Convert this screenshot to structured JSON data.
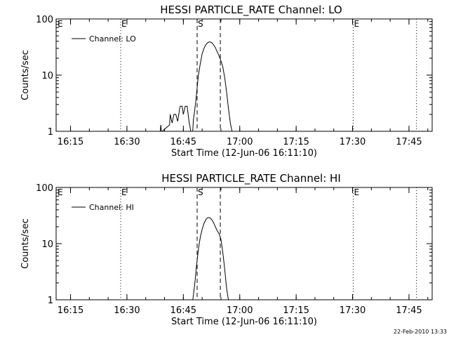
{
  "footer_timestamp": "22-Feb-2010 13:33",
  "chart_data": [
    {
      "type": "line",
      "title": "HESSI PARTICLE_RATE Channel: LO",
      "xlabel": "Start Time (12-Jun-06 16:11:10)",
      "ylabel": "Counts/sec",
      "yscale": "log",
      "ylim": [
        1,
        100
      ],
      "xlim": [
        "16:11:10",
        "17:51:10"
      ],
      "x_ticks": [
        "16:15",
        "16:30",
        "16:45",
        "17:00",
        "17:15",
        "17:30",
        "17:45"
      ],
      "y_ticks": [
        "1",
        "10",
        "100"
      ],
      "legend": {
        "position": "top-left",
        "entries": [
          "Channel: LO"
        ]
      },
      "series": [
        {
          "name": "Channel: LO",
          "x": [
            "16:38:50",
            "16:39:00",
            "16:39:10",
            "16:41:20",
            "16:41:30",
            "16:42:00",
            "16:42:30",
            "16:43:00",
            "16:43:30",
            "16:44:00",
            "16:44:10",
            "16:44:40",
            "16:45:00",
            "16:45:30",
            "16:46:00",
            "16:46:30",
            "16:47:00",
            "16:47:30",
            "16:47:40",
            "16:48:00",
            "16:48:20",
            "16:48:40",
            "16:49:00",
            "16:49:30",
            "16:50:00",
            "16:50:30",
            "16:51:00",
            "16:51:30",
            "16:52:00",
            "16:52:30",
            "16:53:00",
            "16:53:30",
            "16:54:00",
            "16:54:30",
            "16:55:00",
            "16:55:30",
            "16:56:00",
            "16:56:30",
            "16:57:00",
            "16:57:30",
            "16:58:00"
          ],
          "y": [
            1.0,
            1.3,
            1.0,
            1.3,
            2.0,
            1.4,
            2.0,
            2.0,
            1.5,
            2.5,
            2.8,
            2.8,
            2.0,
            2.8,
            2.8,
            1.5,
            1.0,
            1.0,
            1.6,
            2.3,
            3.5,
            6.0,
            10,
            16,
            24,
            30,
            35,
            38,
            39,
            38,
            35,
            31,
            26,
            22,
            18,
            14,
            9,
            5,
            2.5,
            1.4,
            1.0
          ]
        }
      ],
      "markers": [
        {
          "time": "16:28:20",
          "label": "E",
          "style": "dotted"
        },
        {
          "time": "16:48:40",
          "label": "S",
          "style": "dashed"
        },
        {
          "time": "16:54:50",
          "label": "",
          "style": "dashed"
        },
        {
          "time": "17:30:10",
          "label": "E",
          "style": "dotted"
        },
        {
          "time": "17:47:00",
          "label": "",
          "style": "dotted"
        }
      ]
    },
    {
      "type": "line",
      "title": "HESSI PARTICLE_RATE Channel: HI",
      "xlabel": "Start Time (12-Jun-06 16:11:10)",
      "ylabel": "Counts/sec",
      "yscale": "log",
      "ylim": [
        1,
        100
      ],
      "xlim": [
        "16:11:10",
        "17:51:10"
      ],
      "x_ticks": [
        "16:15",
        "16:30",
        "16:45",
        "17:00",
        "17:15",
        "17:30",
        "17:45"
      ],
      "y_ticks": [
        "1",
        "10",
        "100"
      ],
      "legend": {
        "position": "top-left",
        "entries": [
          "Channel: HI"
        ]
      },
      "series": [
        {
          "name": "Channel: HI",
          "x": [
            "16:47:30",
            "16:48:00",
            "16:48:30",
            "16:49:00",
            "16:49:30",
            "16:50:00",
            "16:50:30",
            "16:51:00",
            "16:51:30",
            "16:52:00",
            "16:52:30",
            "16:53:00",
            "16:53:30",
            "16:54:00",
            "16:54:30",
            "16:55:00",
            "16:55:30",
            "16:56:00",
            "16:56:30",
            "16:57:00"
          ],
          "y": [
            1.0,
            1.8,
            4.0,
            8.0,
            13,
            18,
            23,
            27,
            29,
            29,
            27,
            24,
            20,
            17,
            15,
            12,
            7,
            3.5,
            1.6,
            1.0
          ]
        }
      ],
      "markers": [
        {
          "time": "16:28:20",
          "label": "E",
          "style": "dotted"
        },
        {
          "time": "16:48:40",
          "label": "S",
          "style": "dashed"
        },
        {
          "time": "16:54:50",
          "label": "",
          "style": "dashed"
        },
        {
          "time": "17:30:10",
          "label": "E",
          "style": "dotted"
        },
        {
          "time": "17:47:00",
          "label": "",
          "style": "dotted"
        }
      ]
    }
  ]
}
